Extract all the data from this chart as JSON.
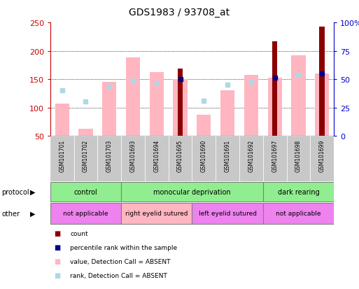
{
  "title": "GDS1983 / 93708_at",
  "samples": [
    "GSM101701",
    "GSM101702",
    "GSM101703",
    "GSM101693",
    "GSM101694",
    "GSM101695",
    "GSM101690",
    "GSM101691",
    "GSM101692",
    "GSM101697",
    "GSM101698",
    "GSM101699"
  ],
  "count_values": [
    null,
    null,
    null,
    null,
    null,
    168,
    null,
    null,
    null,
    217,
    null,
    243
  ],
  "pink_bar_values": [
    107,
    62,
    145,
    188,
    162,
    150,
    87,
    130,
    158,
    153,
    192,
    160
  ],
  "blue_square_values": [
    130,
    110,
    136,
    147,
    143,
    150,
    112,
    140,
    145,
    153,
    158,
    160
  ],
  "blue_sq_absent": [
    true,
    true,
    true,
    true,
    true,
    false,
    true,
    true,
    true,
    false,
    true,
    false
  ],
  "ymin": 50,
  "ymax": 250,
  "yticks_left": [
    50,
    100,
    150,
    200,
    250
  ],
  "right_tick_labels": [
    "0",
    "25",
    "50",
    "75",
    "100%"
  ],
  "protocol_data": [
    {
      "label": "control",
      "start": 0,
      "end": 3,
      "color": "#90EE90"
    },
    {
      "label": "monocular deprivation",
      "start": 3,
      "end": 9,
      "color": "#90EE90"
    },
    {
      "label": "dark rearing",
      "start": 9,
      "end": 12,
      "color": "#90EE90"
    }
  ],
  "other_data": [
    {
      "label": "not applicable",
      "start": 0,
      "end": 3,
      "color": "#EE82EE"
    },
    {
      "label": "right eyelid sutured",
      "start": 3,
      "end": 6,
      "color": "#FFB6C1"
    },
    {
      "label": "left eyelid sutured",
      "start": 6,
      "end": 9,
      "color": "#EE82EE"
    },
    {
      "label": "not applicable",
      "start": 9,
      "end": 12,
      "color": "#EE82EE"
    }
  ],
  "pink_bar_color": "#FFB6C1",
  "count_bar_color": "#8B0000",
  "blue_sq_present_color": "#00008B",
  "blue_sq_absent_color": "#ADD8E6",
  "bg_color": "#FFFFFF",
  "left_axis_color": "#CC0000",
  "right_axis_color": "#0000CC",
  "sample_bg_color": "#C8C8C8",
  "legend_items": [
    {
      "label": "count",
      "color": "#8B0000"
    },
    {
      "label": "percentile rank within the sample",
      "color": "#00008B"
    },
    {
      "label": "value, Detection Call = ABSENT",
      "color": "#FFB6C1"
    },
    {
      "label": "rank, Detection Call = ABSENT",
      "color": "#ADD8E6"
    }
  ]
}
